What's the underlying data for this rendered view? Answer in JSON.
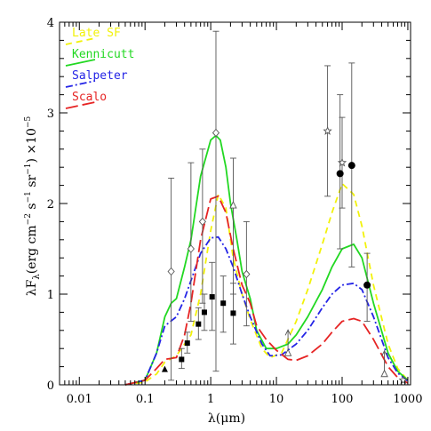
{
  "chart_data": {
    "type": "line",
    "xlabel": "λ(μm)",
    "ylabel": "λF",
    "ylabel_sub": "λ",
    "ylabel_units": "(erg cm",
    "ylabel_exp1": "−2",
    "ylabel_mid": " s",
    "ylabel_exp2": "−1",
    "ylabel_mid2": " sr",
    "ylabel_exp3": "−1",
    "ylabel_end": ") ×10",
    "ylabel_exp4": "−5",
    "x_scale": "log",
    "xlim": [
      0.005,
      1100
    ],
    "ylim": [
      0,
      4
    ],
    "x_ticks": [
      {
        "value": 0.01,
        "label": "0.01"
      },
      {
        "value": 0.1,
        "label": "0.1"
      },
      {
        "value": 1,
        "label": "1"
      },
      {
        "value": 10,
        "label": "10"
      },
      {
        "value": 100,
        "label": "100"
      },
      {
        "value": 1000,
        "label": "1000"
      }
    ],
    "y_ticks": [
      {
        "value": 0,
        "label": "0"
      },
      {
        "value": 1,
        "label": "1"
      },
      {
        "value": 2,
        "label": "2"
      },
      {
        "value": 3,
        "label": "3"
      },
      {
        "value": 4,
        "label": "4"
      }
    ],
    "legend_position": "top-left",
    "series": [
      {
        "name": "Late SF",
        "color": "#f2f20a",
        "dash": "7,5",
        "x": [
          0.05,
          0.1,
          0.15,
          0.2,
          0.3,
          0.5,
          0.7,
          1,
          1.3,
          1.7,
          2.2,
          3,
          4,
          6,
          8,
          12,
          20,
          30,
          50,
          70,
          100,
          150,
          200,
          300,
          500,
          700,
          1000
        ],
        "y": [
          0,
          0.03,
          0.12,
          0.25,
          0.32,
          0.55,
          1.0,
          1.7,
          2.1,
          1.95,
          1.4,
          1.0,
          0.72,
          0.4,
          0.3,
          0.35,
          0.7,
          1.05,
          1.55,
          1.9,
          2.22,
          2.1,
          1.75,
          1.1,
          0.45,
          0.18,
          0.05
        ]
      },
      {
        "name": "Kennicutt",
        "color": "#22d822",
        "dash": "",
        "x": [
          0.05,
          0.1,
          0.15,
          0.2,
          0.25,
          0.3,
          0.4,
          0.5,
          0.7,
          1,
          1.2,
          1.4,
          1.7,
          2,
          2.5,
          3,
          4,
          5,
          7,
          10,
          15,
          20,
          30,
          50,
          70,
          100,
          150,
          200,
          300,
          500,
          700,
          1000
        ],
        "y": [
          0,
          0.05,
          0.35,
          0.75,
          0.9,
          0.95,
          1.3,
          1.6,
          2.3,
          2.7,
          2.75,
          2.7,
          2.4,
          2.0,
          1.6,
          1.25,
          0.95,
          0.6,
          0.4,
          0.4,
          0.45,
          0.55,
          0.75,
          1.05,
          1.3,
          1.5,
          1.55,
          1.4,
          0.9,
          0.35,
          0.15,
          0.05
        ]
      },
      {
        "name": "Salpeter",
        "color": "#2424e6",
        "dash": "8,3,2,3",
        "x": [
          0.05,
          0.1,
          0.15,
          0.2,
          0.3,
          0.4,
          0.5,
          0.7,
          1,
          1.3,
          1.7,
          2.2,
          3,
          4,
          6,
          8,
          12,
          20,
          30,
          50,
          70,
          100,
          150,
          200,
          300,
          500,
          700,
          1000
        ],
        "y": [
          0,
          0.05,
          0.35,
          0.65,
          0.75,
          0.95,
          1.15,
          1.45,
          1.62,
          1.63,
          1.5,
          1.3,
          1.0,
          0.75,
          0.45,
          0.32,
          0.33,
          0.45,
          0.6,
          0.85,
          1.0,
          1.1,
          1.12,
          1.05,
          0.75,
          0.3,
          0.13,
          0.04
        ]
      },
      {
        "name": "Scalo",
        "color": "#e62424",
        "dash": "14,5",
        "x": [
          0.05,
          0.1,
          0.15,
          0.2,
          0.3,
          0.4,
          0.5,
          0.7,
          1,
          1.3,
          1.7,
          2.2,
          3,
          4,
          5,
          7,
          10,
          15,
          20,
          30,
          50,
          70,
          100,
          150,
          200,
          300,
          500,
          700,
          1000
        ],
        "y": [
          0,
          0.05,
          0.18,
          0.28,
          0.3,
          0.55,
          0.9,
          1.6,
          2.05,
          2.08,
          1.9,
          1.5,
          1.1,
          0.9,
          0.65,
          0.5,
          0.38,
          0.28,
          0.27,
          0.32,
          0.45,
          0.58,
          0.7,
          0.73,
          0.7,
          0.5,
          0.2,
          0.08,
          0.02
        ]
      }
    ],
    "observations": [
      {
        "marker": "diamond",
        "x": 0.25,
        "y": 1.25,
        "ylo": 0.05,
        "yhi": 2.28
      },
      {
        "marker": "diamond",
        "x": 0.5,
        "y": 1.5,
        "ylo": 0.7,
        "yhi": 2.45
      },
      {
        "marker": "diamond",
        "x": 0.75,
        "y": 1.8,
        "ylo": 0.9,
        "yhi": 2.6
      },
      {
        "marker": "diamond",
        "x": 1.2,
        "y": 2.78,
        "ylo": 0.15,
        "yhi": 3.9
      },
      {
        "marker": "triangle-open",
        "x": 2.2,
        "y": 1.98,
        "ylo": 1.0,
        "yhi": 2.5
      },
      {
        "marker": "diamond",
        "x": 3.5,
        "y": 1.22,
        "ylo": 0.65,
        "yhi": 1.8
      },
      {
        "marker": "triangle",
        "x": 0.2,
        "y": 0.17,
        "ylo": null,
        "yhi": null
      },
      {
        "marker": "square",
        "x": 0.36,
        "y": 0.28,
        "ylo": 0.18,
        "yhi": 0.4
      },
      {
        "marker": "square",
        "x": 0.44,
        "y": 0.46,
        "ylo": 0.35,
        "yhi": 0.58
      },
      {
        "marker": "square",
        "x": 0.65,
        "y": 0.67,
        "ylo": 0.5,
        "yhi": 0.85
      },
      {
        "marker": "square",
        "x": 0.8,
        "y": 0.8,
        "ylo": 0.6,
        "yhi": 1.0
      },
      {
        "marker": "square",
        "x": 1.05,
        "y": 0.97,
        "ylo": 0.6,
        "yhi": 1.35
      },
      {
        "marker": "square",
        "x": 1.55,
        "y": 0.9,
        "ylo": 0.58,
        "yhi": 1.2
      },
      {
        "marker": "square",
        "x": 2.2,
        "y": 0.79,
        "ylo": 0.45,
        "yhi": 1.12
      },
      {
        "marker": "up-arrow",
        "x": 15,
        "y": 0.35,
        "ylo": null,
        "yhi": null
      },
      {
        "marker": "star",
        "x": 60,
        "y": 2.8,
        "ylo": 2.08,
        "yhi": 3.52
      },
      {
        "marker": "star",
        "x": 100,
        "y": 2.45,
        "ylo": 1.95,
        "yhi": 2.95
      },
      {
        "marker": "circle",
        "x": 93,
        "y": 2.33,
        "ylo": 1.5,
        "yhi": 3.2
      },
      {
        "marker": "circle",
        "x": 140,
        "y": 2.42,
        "ylo": 1.3,
        "yhi": 3.55
      },
      {
        "marker": "circle",
        "x": 240,
        "y": 1.1,
        "ylo": 0.7,
        "yhi": 1.45
      },
      {
        "marker": "up-arrow-open",
        "x": 440,
        "y": 0.12,
        "ylo": null,
        "yhi": null
      },
      {
        "marker": "star",
        "x": 850,
        "y": 0.05,
        "ylo": null,
        "yhi": null
      }
    ]
  }
}
